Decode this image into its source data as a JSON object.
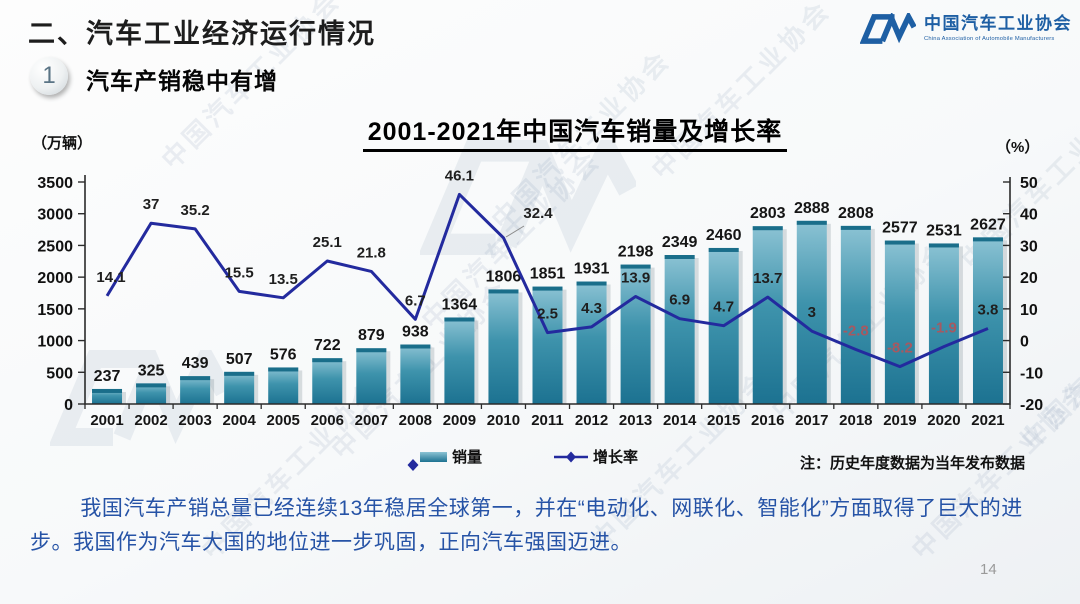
{
  "slide": {
    "header_title": "二、汽车工业经济运行情况",
    "section_number": "1",
    "section_title": "汽车产销稳中有增",
    "page_number": "14"
  },
  "logo": {
    "name_cn": "中国汽车工业协会",
    "name_en": "China Association of Automobile Manufacturers"
  },
  "watermark": {
    "text": "中国汽车工业协会"
  },
  "chart_data": {
    "type": "bar",
    "subtype": "bar-line-combo",
    "title": "2001-2021年中国汽车销量及增长率",
    "categories": [
      "2001",
      "2002",
      "2003",
      "2004",
      "2005",
      "2006",
      "2007",
      "2008",
      "2009",
      "2010",
      "2011",
      "2012",
      "2013",
      "2014",
      "2015",
      "2016",
      "2017",
      "2018",
      "2019",
      "2020",
      "2021"
    ],
    "series": [
      {
        "name": "销量",
        "kind": "bar",
        "axis": "left",
        "values": [
          237,
          325,
          439,
          507,
          576,
          722,
          879,
          938,
          1364,
          1806,
          1851,
          1931,
          2198,
          2349,
          2460,
          2803,
          2888,
          2808,
          2577,
          2531,
          2627
        ]
      },
      {
        "name": "增长率",
        "kind": "line",
        "axis": "right",
        "values": [
          14.1,
          37,
          35.2,
          15.5,
          13.5,
          25.1,
          21.8,
          6.7,
          46.1,
          32.4,
          2.5,
          4.3,
          13.9,
          6.9,
          4.7,
          13.7,
          3,
          -2.8,
          -8.2,
          -1.9,
          3.8
        ]
      }
    ],
    "left_axis": {
      "label": "（万辆）",
      "min": 0,
      "max": 3500,
      "ticks": [
        3500,
        3000,
        2500,
        2000,
        1500,
        1000,
        500,
        0
      ]
    },
    "right_axis": {
      "label": "（%）",
      "min": -20,
      "max": 50,
      "ticks": [
        50,
        40,
        30,
        20,
        10,
        0,
        -10,
        -20
      ]
    },
    "legend": [
      {
        "label": "销量"
      },
      {
        "label": "增长率"
      }
    ],
    "legend_position": "bottom",
    "grid": false,
    "note": "注：历史年度数据为当年发布数据"
  },
  "footer": {
    "paragraph": "我国汽车产销总量已经连续13年稳居全球第一，并在“电动化、网联化、智能化”方面取得了巨大的进步。我国作为汽车大国的地位进一步巩固，正向汽车强国迈进。"
  },
  "colors": {
    "brand_blue": "#1E5FA4",
    "bar_top": "#8CC3D4",
    "bar_mid": "#3E93AC",
    "bar_bottom": "#1C7291",
    "bar_cap": "#1A6E8A",
    "line_navy": "#232A9E",
    "negative_label": "#A65961",
    "paragraph_blue": "#2653A6"
  }
}
